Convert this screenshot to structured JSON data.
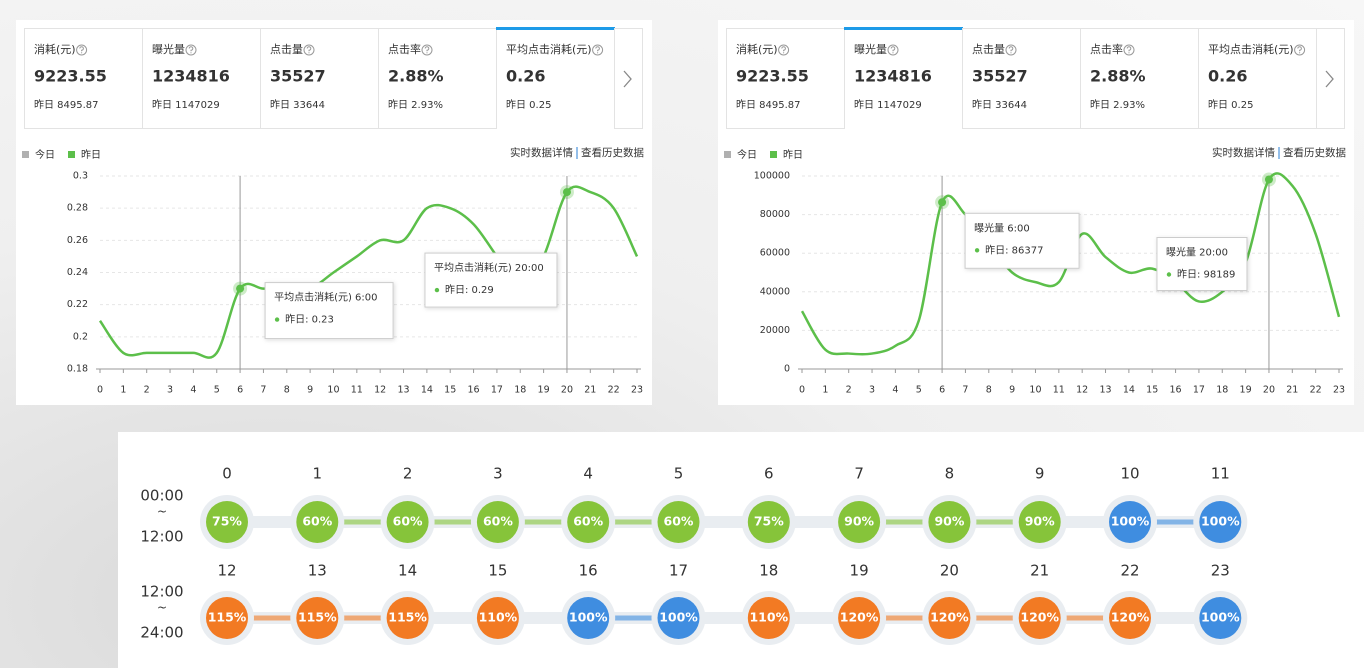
{
  "panels": [
    {
      "cards": [
        {
          "label": "消耗(元)",
          "value": "9223.55",
          "prev": "昨日 8495.87"
        },
        {
          "label": "曝光量",
          "value": "1234816",
          "prev": "昨日 1147029"
        },
        {
          "label": "点击量",
          "value": "35527",
          "prev": "昨日 33644"
        },
        {
          "label": "点击率",
          "value": "2.88%",
          "prev": "昨日 2.93%"
        },
        {
          "label": "平均点击消耗(元)",
          "value": "0.26",
          "prev": "昨日 0.25"
        }
      ],
      "active_card": 4,
      "legend": [
        {
          "name": "今日",
          "color": "#b0b0b0"
        },
        {
          "name": "昨日",
          "color": "#5cbf4a"
        }
      ],
      "links": [
        "实时数据详情",
        "查看历史数据"
      ],
      "chart": {
        "type": "line",
        "categories": [
          "0",
          "1",
          "2",
          "3",
          "4",
          "5",
          "6",
          "7",
          "8",
          "9",
          "10",
          "11",
          "12",
          "13",
          "14",
          "15",
          "16",
          "17",
          "18",
          "19",
          "20",
          "21",
          "22",
          "23"
        ],
        "ylim": [
          0.18,
          0.3
        ],
        "yticks": [
          0.18,
          0.2,
          0.22,
          0.24,
          0.26,
          0.28,
          0.3
        ],
        "grid": true,
        "series": [
          {
            "name": "昨日",
            "color": "#5cbf4a",
            "values": [
              0.21,
              0.19,
              0.19,
              0.19,
              0.19,
              0.19,
              0.23,
              0.23,
              0.23,
              0.23,
              0.24,
              0.25,
              0.26,
              0.26,
              0.28,
              0.28,
              0.27,
              0.25,
              0.23,
              0.25,
              0.29,
              0.29,
              0.28,
              0.25
            ]
          }
        ],
        "tooltips": [
          {
            "category": "6",
            "title": "平均点击消耗(元) 6:00",
            "label": "昨日: 0.23"
          },
          {
            "category": "20",
            "title": "平均点击消耗(元) 20:00",
            "label": "昨日: 0.29"
          }
        ]
      }
    },
    {
      "cards": [
        {
          "label": "消耗(元)",
          "value": "9223.55",
          "prev": "昨日 8495.87"
        },
        {
          "label": "曝光量",
          "value": "1234816",
          "prev": "昨日 1147029"
        },
        {
          "label": "点击量",
          "value": "35527",
          "prev": "昨日 33644"
        },
        {
          "label": "点击率",
          "value": "2.88%",
          "prev": "昨日 2.93%"
        },
        {
          "label": "平均点击消耗(元)",
          "value": "0.26",
          "prev": "昨日 0.25"
        }
      ],
      "active_card": 1,
      "legend": [
        {
          "name": "今日",
          "color": "#b0b0b0"
        },
        {
          "name": "昨日",
          "color": "#5cbf4a"
        }
      ],
      "links": [
        "实时数据详情",
        "查看历史数据"
      ],
      "chart": {
        "type": "line",
        "categories": [
          "0",
          "1",
          "2",
          "3",
          "4",
          "5",
          "6",
          "7",
          "8",
          "9",
          "10",
          "11",
          "12",
          "13",
          "14",
          "15",
          "16",
          "17",
          "18",
          "19",
          "20",
          "21",
          "22",
          "23"
        ],
        "ylim": [
          0,
          100000
        ],
        "yticks": [
          0,
          20000,
          40000,
          60000,
          80000,
          100000
        ],
        "grid": true,
        "series": [
          {
            "name": "昨日",
            "color": "#5cbf4a",
            "values": [
              30000,
              10000,
              8000,
              8000,
              12000,
              25000,
              86377,
              80000,
              65000,
              50000,
              45000,
              45000,
              70000,
              58000,
              50000,
              52000,
              45000,
              35000,
              40000,
              55000,
              98189,
              95000,
              70000,
              27000
            ]
          }
        ],
        "tooltips": [
          {
            "category": "6",
            "title": "曝光量 6:00",
            "label": "昨日: 86377"
          },
          {
            "category": "20",
            "title": "曝光量 20:00",
            "label": "昨日: 98189"
          }
        ]
      }
    }
  ],
  "schedule": {
    "rows": [
      {
        "time": [
          "00:00",
          "~",
          "12:00"
        ],
        "cells": [
          {
            "hour": 0,
            "rate": "75%",
            "color": "#86c43a"
          },
          {
            "hour": 1,
            "rate": "60%",
            "color": "#86c43a"
          },
          {
            "hour": 2,
            "rate": "60%",
            "color": "#86c43a"
          },
          {
            "hour": 3,
            "rate": "60%",
            "color": "#86c43a"
          },
          {
            "hour": 4,
            "rate": "60%",
            "color": "#86c43a"
          },
          {
            "hour": 5,
            "rate": "60%",
            "color": "#86c43a"
          },
          {
            "hour": 6,
            "rate": "75%",
            "color": "#86c43a"
          },
          {
            "hour": 7,
            "rate": "90%",
            "color": "#86c43a"
          },
          {
            "hour": 8,
            "rate": "90%",
            "color": "#86c43a"
          },
          {
            "hour": 9,
            "rate": "90%",
            "color": "#86c43a"
          },
          {
            "hour": 10,
            "rate": "100%",
            "color": "#3f8de0"
          },
          {
            "hour": 11,
            "rate": "100%",
            "color": "#3f8de0"
          }
        ]
      },
      {
        "time": [
          "12:00",
          "~",
          "24:00"
        ],
        "cells": [
          {
            "hour": 12,
            "rate": "115%",
            "color": "#f27a23"
          },
          {
            "hour": 13,
            "rate": "115%",
            "color": "#f27a23"
          },
          {
            "hour": 14,
            "rate": "115%",
            "color": "#f27a23"
          },
          {
            "hour": 15,
            "rate": "110%",
            "color": "#f27a23"
          },
          {
            "hour": 16,
            "rate": "100%",
            "color": "#3f8de0"
          },
          {
            "hour": 17,
            "rate": "100%",
            "color": "#3f8de0"
          },
          {
            "hour": 18,
            "rate": "110%",
            "color": "#f27a23"
          },
          {
            "hour": 19,
            "rate": "120%",
            "color": "#f27a23"
          },
          {
            "hour": 20,
            "rate": "120%",
            "color": "#f27a23"
          },
          {
            "hour": 21,
            "rate": "120%",
            "color": "#f27a23"
          },
          {
            "hour": 22,
            "rate": "120%",
            "color": "#f27a23"
          },
          {
            "hour": 23,
            "rate": "100%",
            "color": "#3f8de0"
          }
        ]
      }
    ]
  }
}
